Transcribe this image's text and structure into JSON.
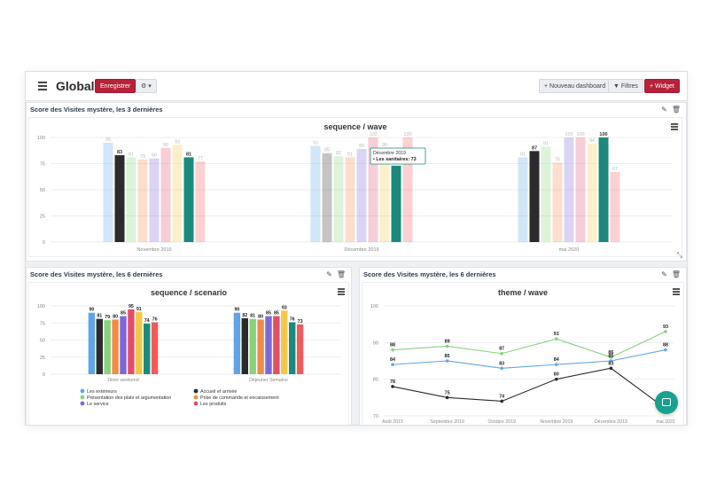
{
  "header": {
    "title": "Global",
    "save_label": "Enregistrer",
    "settings_label": "⚙ ▾",
    "new_dashboard_label": "+ Nouveau dashboard",
    "filters_label": "▼ Filtres",
    "widget_label": "+ Widget"
  },
  "widgets": {
    "top": {
      "title": "Score des Visites mystère, les 3 dernières",
      "chart_title": "sequence / wave"
    },
    "bottom_left": {
      "title": "Score des Visites mystère, les 6 dernières",
      "chart_title": "sequence / scenario"
    },
    "bottom_right": {
      "title": "Score des Visites mystère, les 6 dernières",
      "chart_title": "theme / wave"
    }
  },
  "tooltip": {
    "line1": "Décembre 2019",
    "line2": "• Les sanitaires: 73"
  },
  "colors": {
    "accent": "#b5223a",
    "series": [
      "#5da5e8",
      "#2b2b2b",
      "#86d37a",
      "#f28b45",
      "#7b68d9",
      "#e34d6a",
      "#f3c845",
      "#1b8a7c",
      "#f15a5a"
    ]
  },
  "chart_data": [
    {
      "type": "bar",
      "title": "sequence / wave",
      "categories": [
        "Novembre 2019",
        "Décembre 2019",
        "mai 2020"
      ],
      "ylim": [
        0,
        100
      ],
      "yticks": [
        0,
        25,
        50,
        75,
        100
      ],
      "series": [
        {
          "values": [
            95,
            92,
            81
          ]
        },
        {
          "values": [
            83,
            85,
            87
          ]
        },
        {
          "values": [
            81,
            82,
            91
          ]
        },
        {
          "values": [
            79,
            81,
            76
          ]
        },
        {
          "values": [
            80,
            89,
            100
          ]
        },
        {
          "values": [
            90,
            100,
            100
          ]
        },
        {
          "values": [
            93,
            90,
            94
          ]
        },
        {
          "values": [
            81,
            73,
            100
          ]
        },
        {
          "values": [
            77,
            100,
            67
          ]
        }
      ],
      "highlight": [
        [
          0,
          7
        ],
        [
          1,
          7
        ],
        [
          2,
          7
        ]
      ],
      "grid": true
    },
    {
      "type": "bar",
      "title": "sequence / scenario",
      "categories": [
        "Diner weekend",
        "Déjeuner Semaine"
      ],
      "ylim": [
        0,
        100
      ],
      "yticks": [
        0,
        25,
        50,
        75,
        100
      ],
      "series": [
        {
          "name": "Les extérieurs",
          "values": [
            90,
            90
          ]
        },
        {
          "name": "Accueil et arrivée",
          "values": [
            81,
            82
          ]
        },
        {
          "name": "Présentation des plats et argumentation",
          "values": [
            79,
            81
          ]
        },
        {
          "name": "Prise de commande et encaissement",
          "values": [
            80,
            80
          ]
        },
        {
          "name": "Le service",
          "values": [
            85,
            85
          ]
        },
        {
          "name": "Les produits",
          "values": [
            95,
            85
          ]
        },
        {
          "values": [
            91,
            93
          ]
        },
        {
          "values": [
            74,
            76
          ]
        },
        {
          "values": [
            76,
            73
          ]
        }
      ],
      "legend_position": "bottom",
      "grid": true
    },
    {
      "type": "line",
      "title": "theme / wave",
      "categories": [
        "Août 2019",
        "Septembre 2019",
        "Octobre 2019",
        "Novembre 2019",
        "Décembre 2019",
        "mai 2020"
      ],
      "ylim": [
        70,
        100
      ],
      "yticks": [
        70,
        80,
        90,
        100
      ],
      "series": [
        {
          "color": "#86d37a",
          "values": [
            88,
            89,
            87,
            91,
            86,
            93
          ]
        },
        {
          "color": "#5da5e8",
          "values": [
            84,
            85,
            83,
            84,
            85,
            88
          ]
        },
        {
          "color": "#2b2b2b",
          "values": [
            78,
            75,
            74,
            80,
            83,
            72
          ]
        }
      ],
      "grid": true
    }
  ]
}
